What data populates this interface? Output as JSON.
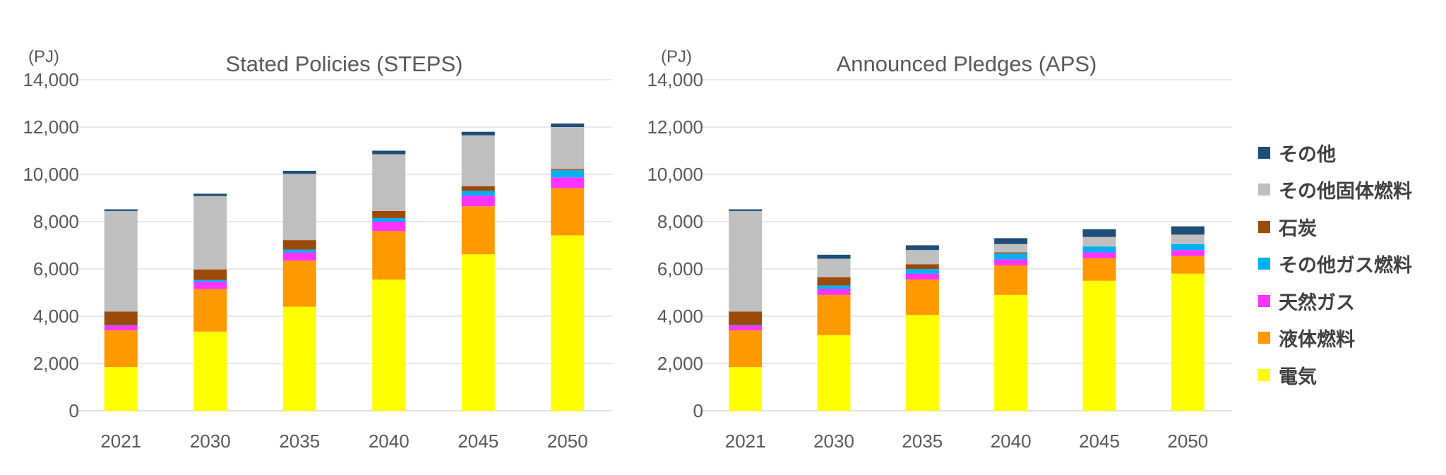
{
  "chart_data": [
    {
      "type": "bar",
      "stacked": true,
      "title": "Stated Policies (STEPS)",
      "unit_label": "(PJ)",
      "ylim": [
        0,
        14000
      ],
      "yticks": [
        "0",
        "2,000",
        "4,000",
        "6,000",
        "8,000",
        "10,000",
        "12,000",
        "14,000"
      ],
      "categories": [
        "2021",
        "2030",
        "2035",
        "2040",
        "2045",
        "2050"
      ],
      "grid": true,
      "series": [
        {
          "name": "電気",
          "color": "#FFFF00",
          "values": [
            1850,
            3350,
            4400,
            5550,
            6620,
            7420
          ]
        },
        {
          "name": "液体燃料",
          "color": "#FF9900",
          "values": [
            1550,
            1800,
            1950,
            2050,
            2030,
            2000
          ]
        },
        {
          "name": "天然ガス",
          "color": "#FF33FF",
          "values": [
            200,
            300,
            350,
            400,
            450,
            450
          ]
        },
        {
          "name": "その他ガス燃料",
          "color": "#00B0F0",
          "values": [
            20,
            80,
            120,
            150,
            200,
            300
          ]
        },
        {
          "name": "石炭",
          "color": "#9C4A0A",
          "values": [
            580,
            450,
            400,
            300,
            200,
            50
          ]
        },
        {
          "name": "その他固体燃料",
          "color": "#BFBFBF",
          "values": [
            4250,
            3100,
            2800,
            2400,
            2150,
            1780
          ]
        },
        {
          "name": "その他",
          "color": "#1F4E79",
          "values": [
            70,
            100,
            130,
            150,
            150,
            150
          ]
        }
      ]
    },
    {
      "type": "bar",
      "stacked": true,
      "title": "Announced Pledges (APS)",
      "unit_label": "(PJ)",
      "ylim": [
        0,
        14000
      ],
      "yticks": [
        "0",
        "2,000",
        "4,000",
        "6,000",
        "8,000",
        "10,000",
        "12,000",
        "14,000"
      ],
      "categories": [
        "2021",
        "2030",
        "2035",
        "2040",
        "2045",
        "2050"
      ],
      "grid": true,
      "series": [
        {
          "name": "電気",
          "color": "#FFFF00",
          "values": [
            1850,
            3200,
            4050,
            4900,
            5500,
            5800
          ]
        },
        {
          "name": "液体燃料",
          "color": "#FF9900",
          "values": [
            1550,
            1700,
            1500,
            1250,
            950,
            750
          ]
        },
        {
          "name": "天然ガス",
          "color": "#FF33FF",
          "values": [
            200,
            250,
            250,
            250,
            250,
            250
          ]
        },
        {
          "name": "その他ガス燃料",
          "color": "#00B0F0",
          "values": [
            20,
            150,
            200,
            250,
            250,
            250
          ]
        },
        {
          "name": "石炭",
          "color": "#9C4A0A",
          "values": [
            580,
            350,
            200,
            50,
            0,
            0
          ]
        },
        {
          "name": "その他固体燃料",
          "color": "#BFBFBF",
          "values": [
            4250,
            780,
            600,
            350,
            400,
            400
          ]
        },
        {
          "name": "その他",
          "color": "#1F4E79",
          "values": [
            70,
            170,
            200,
            250,
            330,
            350
          ]
        }
      ]
    }
  ],
  "legend": {
    "placement": "right",
    "items": [
      {
        "label": "その他",
        "color": "#1F4E79"
      },
      {
        "label": "その他固体燃料",
        "color": "#BFBFBF"
      },
      {
        "label": "石炭",
        "color": "#9C4A0A"
      },
      {
        "label": "その他ガス燃料",
        "color": "#00B0F0"
      },
      {
        "label": "天然ガス",
        "color": "#FF33FF"
      },
      {
        "label": "液体燃料",
        "color": "#FF9900"
      },
      {
        "label": "電気",
        "color": "#FFFF00"
      }
    ]
  }
}
